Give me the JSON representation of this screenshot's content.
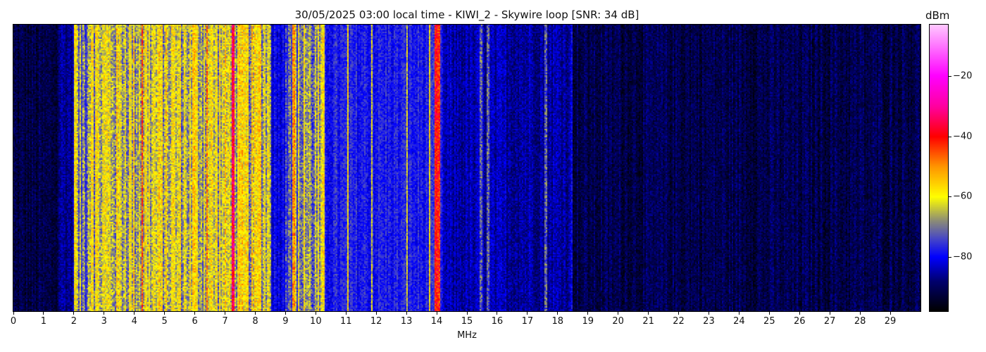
{
  "chart_data": {
    "type": "heatmap",
    "title": "30/05/2025 03:00 local time - KIWI_2 - Skywire loop [SNR: 34 dB]",
    "xlabel": "MHz",
    "xlim": [
      0,
      30
    ],
    "xticks": [
      0,
      1,
      2,
      3,
      4,
      5,
      6,
      7,
      8,
      9,
      10,
      11,
      12,
      13,
      14,
      15,
      16,
      17,
      18,
      19,
      20,
      21,
      22,
      23,
      24,
      25,
      26,
      27,
      28,
      29
    ],
    "colorbar": {
      "label": "dBm",
      "range": [
        -98,
        -3
      ],
      "ticks": [
        -20,
        -40,
        -60,
        -80
      ],
      "colormap": [
        {
          "v": -98,
          "c": "#000000"
        },
        {
          "v": -88,
          "c": "#00006e"
        },
        {
          "v": -80,
          "c": "#0000ff"
        },
        {
          "v": -74,
          "c": "#4646c8"
        },
        {
          "v": -68,
          "c": "#8c8c78"
        },
        {
          "v": -60,
          "c": "#ffff00"
        },
        {
          "v": -50,
          "c": "#ff9600"
        },
        {
          "v": -40,
          "c": "#ff0000"
        },
        {
          "v": -30,
          "c": "#ff00a0"
        },
        {
          "v": -20,
          "c": "#ff00ff"
        },
        {
          "v": -3,
          "c": "#ffc8ff"
        }
      ]
    },
    "band_levels_dBm": [
      {
        "from": 0,
        "to": 1.5,
        "level": -92
      },
      {
        "from": 1.5,
        "to": 2.0,
        "level": -86
      },
      {
        "from": 2.0,
        "to": 2.4,
        "level": -70
      },
      {
        "from": 2.4,
        "to": 5.5,
        "level": -63
      },
      {
        "from": 5.5,
        "to": 8.5,
        "level": -63
      },
      {
        "from": 8.5,
        "to": 9.0,
        "level": -80
      },
      {
        "from": 9.0,
        "to": 10.3,
        "level": -68
      },
      {
        "from": 10.3,
        "to": 14.2,
        "level": -78
      },
      {
        "from": 14.2,
        "to": 18.5,
        "level": -85
      },
      {
        "from": 18.5,
        "to": 30,
        "level": -91
      }
    ],
    "carriers_dBm": [
      {
        "f": 2.05,
        "level": -58
      },
      {
        "f": 2.6,
        "level": -58
      },
      {
        "f": 4.25,
        "level": -45
      },
      {
        "f": 5.95,
        "level": -55
      },
      {
        "f": 6.4,
        "level": -48
      },
      {
        "f": 7.25,
        "level": -35
      },
      {
        "f": 8.15,
        "level": -55
      },
      {
        "f": 9.25,
        "level": -50
      },
      {
        "f": 9.6,
        "level": -58
      },
      {
        "f": 10.25,
        "level": -58
      },
      {
        "f": 11.05,
        "level": -58
      },
      {
        "f": 11.85,
        "level": -62
      },
      {
        "f": 13.0,
        "level": -62
      },
      {
        "f": 13.75,
        "level": -58
      },
      {
        "f": 13.95,
        "level": -40
      },
      {
        "f": 14.05,
        "level": -42
      },
      {
        "f": 15.45,
        "level": -72
      },
      {
        "f": 15.7,
        "level": -72
      },
      {
        "f": 17.6,
        "level": -72
      },
      {
        "f": 18.45,
        "level": -80
      }
    ]
  }
}
